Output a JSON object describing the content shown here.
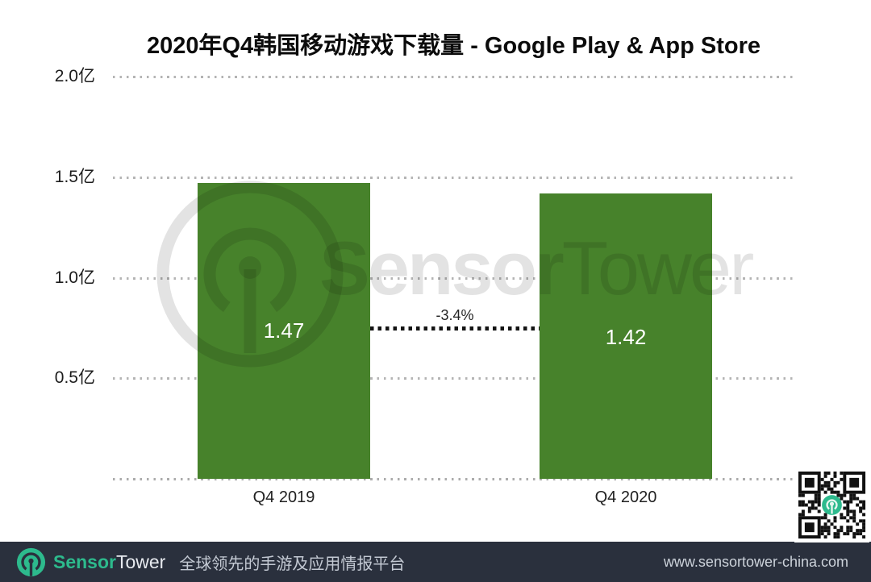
{
  "title": "2020年Q4韩国移动游戏下载量 - Google Play & App Store",
  "chart_data": {
    "type": "bar",
    "title": "2020年Q4韩国移动游戏下载量 - Google Play & App Store",
    "categories": [
      "Q4 2019",
      "Q4 2020"
    ],
    "values": [
      1.47,
      1.42
    ],
    "value_labels": [
      "1.47",
      "1.42"
    ],
    "unit": "亿",
    "change_label": "-3.4%",
    "xlabel": "",
    "ylabel": "",
    "ylim": [
      0,
      2.0
    ],
    "y_ticks": [
      {
        "value": 2.0,
        "label": "2.0亿"
      },
      {
        "value": 1.5,
        "label": "1.5亿"
      },
      {
        "value": 1.0,
        "label": "1.0亿"
      },
      {
        "value": 0.5,
        "label": "0.5亿"
      }
    ],
    "grid": "horizontal-dotted",
    "legend": "none",
    "bar_color": "#47822B"
  },
  "watermark": {
    "logo": "sensortower-ring-logo",
    "text_bold": "Sensor",
    "text_light": "Tower"
  },
  "footer": {
    "logo": "sensortower-logo",
    "brand_bold": "Sensor",
    "brand_light": "Tower",
    "tagline": "全球领先的手游及应用情报平台",
    "url": "www.sensortower-china.com"
  },
  "colors": {
    "bar": "#47822B",
    "grid": "#b4b4b4",
    "teal": "#2DBA8D",
    "footer_bg": "#2A303D",
    "title_text": "#0b0b0b",
    "value_text": "#ffffff"
  }
}
